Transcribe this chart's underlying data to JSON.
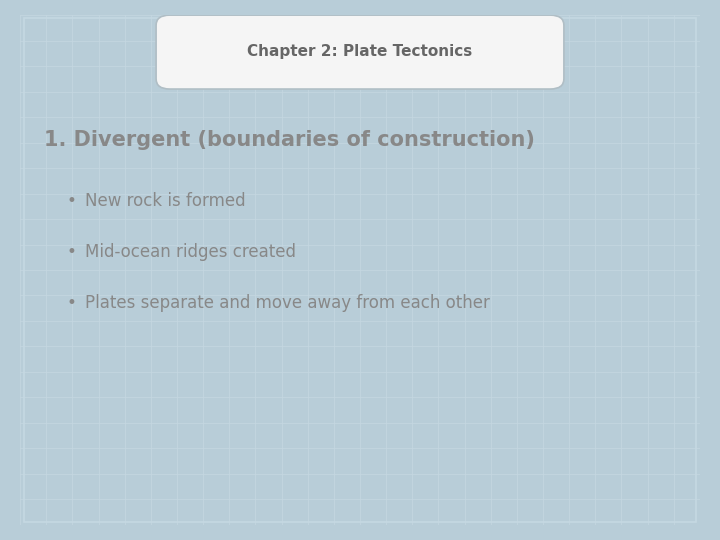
{
  "title": "Chapter 2: Plate Tectonics",
  "heading": "1. Divergent (boundaries of construction)",
  "bullets": [
    "New rock is formed",
    "Mid-ocean ridges created",
    "Plates separate and move away from each other"
  ],
  "bg_color": "#b8cdd8",
  "inner_bg_color": "#eef3f6",
  "grid_color": "#c5d8e2",
  "title_box_fill": "#f5f5f5",
  "title_box_edge_color": "#b0bec5",
  "title_text_color": "#666666",
  "heading_text_color": "#888888",
  "bullet_text_color": "#888888",
  "title_fontsize": 11,
  "heading_fontsize": 15,
  "bullet_fontsize": 12,
  "border_thickness": 18,
  "inner_border_color": "#c5d8e2"
}
